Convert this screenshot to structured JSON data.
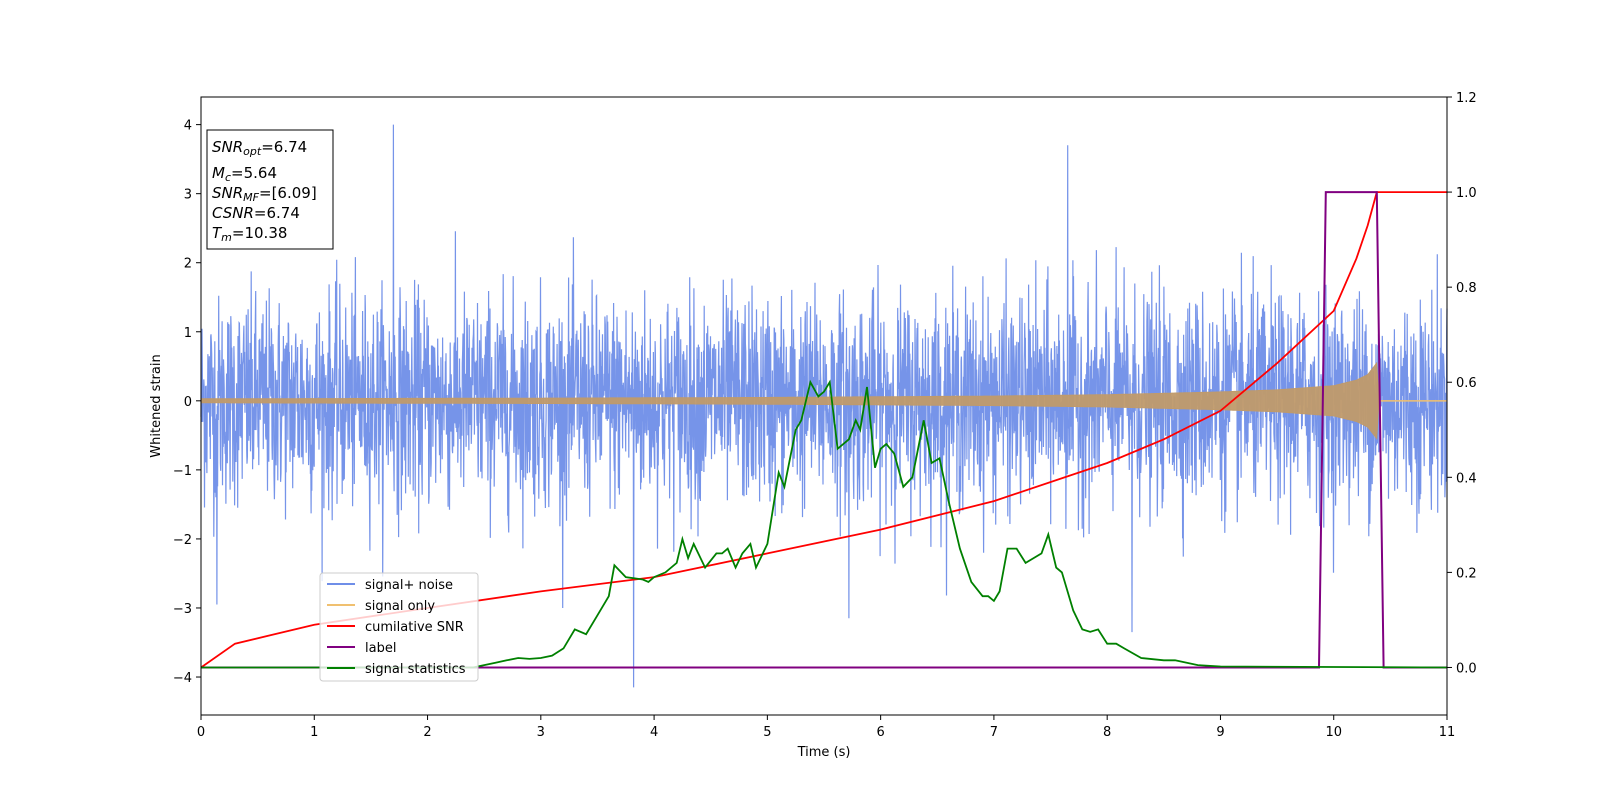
{
  "chart_data": {
    "type": "line",
    "xlabel": "Time (s)",
    "ylabel": "Whitened strain",
    "xlim": [
      0,
      11
    ],
    "ylim": [
      -4.55,
      4.4
    ],
    "y2lim": [
      -0.1,
      1.2
    ],
    "xticks": [
      0,
      1,
      2,
      3,
      4,
      5,
      6,
      7,
      8,
      9,
      10,
      11
    ],
    "xtick_labels": [
      "0",
      "1",
      "2",
      "3",
      "4",
      "5",
      "6",
      "7",
      "8",
      "9",
      "10",
      "11"
    ],
    "yticks": [
      -4,
      -3,
      -2,
      -1,
      0,
      1,
      2,
      3,
      4
    ],
    "ytick_labels": [
      "−4",
      "−3",
      "−2",
      "−1",
      "0",
      "1",
      "2",
      "3",
      "4"
    ],
    "y2ticks": [
      0.0,
      0.2,
      0.4,
      0.6,
      0.8,
      1.0,
      1.2
    ],
    "y2tick_labels": [
      "0.0",
      "0.2",
      "0.4",
      "0.6",
      "0.8",
      "1.0",
      "1.2"
    ],
    "grid": false,
    "legend_position": "lower-left",
    "info_box": {
      "snr_opt_sym": "SNR",
      "snr_opt_sub": "opt",
      "snr_opt_val": "=6.74",
      "mc_sym": "M",
      "mc_sub": "c",
      "mc_val": "=5.64",
      "snr_mf_sym": "SNR",
      "snr_mf_sub": "MF",
      "snr_mf_val": "=[6.09]",
      "csnr_sym": "CSNR",
      "csnr_val": "=6.74",
      "tm_sym": "T",
      "tm_sub": "m",
      "tm_val": "=10.38"
    },
    "series": [
      {
        "name": "signal+ noise",
        "color": "#6f8ee8",
        "axis": "left",
        "noise_sigma": 0.75,
        "peaks": [
          [
            1.7,
            4.0
          ],
          [
            7.65,
            3.7
          ],
          [
            3.82,
            -4.15
          ],
          [
            0.14,
            -2.95
          ],
          [
            5.72,
            -3.15
          ],
          [
            8.22,
            -3.35
          ]
        ]
      },
      {
        "name": "signal only",
        "color": "#f0c070",
        "axis": "left",
        "envelope": [
          [
            0,
            0.03
          ],
          [
            3,
            0.04
          ],
          [
            5,
            0.05
          ],
          [
            7,
            0.07
          ],
          [
            8,
            0.09
          ],
          [
            9,
            0.13
          ],
          [
            9.5,
            0.16
          ],
          [
            10,
            0.22
          ],
          [
            10.2,
            0.3
          ],
          [
            10.3,
            0.38
          ],
          [
            10.38,
            0.55
          ],
          [
            10.4,
            0.0
          ],
          [
            11,
            0.0
          ]
        ]
      },
      {
        "name": "cumilative SNR",
        "color": "#ff0000",
        "axis": "right",
        "end_time": 10.38,
        "values_note": "",
        "points": [
          [
            0.0,
            0.0
          ],
          [
            0.3,
            0.05
          ],
          [
            1.0,
            0.09
          ],
          [
            2.0,
            0.125
          ],
          [
            3.0,
            0.16
          ],
          [
            4.0,
            0.19
          ],
          [
            5.0,
            0.24
          ],
          [
            6.0,
            0.29
          ],
          [
            7.0,
            0.35
          ],
          [
            8.0,
            0.43
          ],
          [
            8.5,
            0.48
          ],
          [
            9.0,
            0.54
          ],
          [
            9.5,
            0.64
          ],
          [
            10.0,
            0.75
          ],
          [
            10.2,
            0.86
          ],
          [
            10.3,
            0.93
          ],
          [
            10.38,
            1.0
          ],
          [
            11.0,
            1.0
          ]
        ]
      },
      {
        "name": "label",
        "color": "#800080",
        "axis": "right",
        "points": [
          [
            0.0,
            0.0
          ],
          [
            9.87,
            0.0
          ],
          [
            9.93,
            1.0
          ],
          [
            10.38,
            1.0
          ],
          [
            10.44,
            0.0
          ],
          [
            11.0,
            0.0
          ]
        ]
      },
      {
        "name": "signal statistics",
        "color": "#008000",
        "axis": "right",
        "points": [
          [
            0.0,
            0.0
          ],
          [
            2.4,
            0.0
          ],
          [
            2.5,
            0.005
          ],
          [
            2.6,
            0.01
          ],
          [
            2.7,
            0.015
          ],
          [
            2.8,
            0.02
          ],
          [
            2.9,
            0.018
          ],
          [
            3.0,
            0.02
          ],
          [
            3.1,
            0.025
          ],
          [
            3.2,
            0.04
          ],
          [
            3.3,
            0.08
          ],
          [
            3.4,
            0.07
          ],
          [
            3.5,
            0.11
          ],
          [
            3.6,
            0.15
          ],
          [
            3.65,
            0.215
          ],
          [
            3.75,
            0.19
          ],
          [
            3.9,
            0.185
          ],
          [
            3.95,
            0.18
          ],
          [
            4.0,
            0.19
          ],
          [
            4.1,
            0.2
          ],
          [
            4.2,
            0.22
          ],
          [
            4.25,
            0.27
          ],
          [
            4.3,
            0.23
          ],
          [
            4.35,
            0.26
          ],
          [
            4.45,
            0.21
          ],
          [
            4.55,
            0.24
          ],
          [
            4.6,
            0.24
          ],
          [
            4.65,
            0.25
          ],
          [
            4.72,
            0.21
          ],
          [
            4.78,
            0.24
          ],
          [
            4.85,
            0.26
          ],
          [
            4.9,
            0.21
          ],
          [
            5.0,
            0.26
          ],
          [
            5.1,
            0.41
          ],
          [
            5.15,
            0.38
          ],
          [
            5.25,
            0.5
          ],
          [
            5.3,
            0.52
          ],
          [
            5.38,
            0.6
          ],
          [
            5.45,
            0.57
          ],
          [
            5.5,
            0.58
          ],
          [
            5.55,
            0.6
          ],
          [
            5.62,
            0.46
          ],
          [
            5.72,
            0.48
          ],
          [
            5.78,
            0.52
          ],
          [
            5.82,
            0.5
          ],
          [
            5.88,
            0.59
          ],
          [
            5.95,
            0.42
          ],
          [
            6.0,
            0.46
          ],
          [
            6.05,
            0.47
          ],
          [
            6.12,
            0.45
          ],
          [
            6.2,
            0.38
          ],
          [
            6.28,
            0.4
          ],
          [
            6.38,
            0.52
          ],
          [
            6.45,
            0.43
          ],
          [
            6.52,
            0.44
          ],
          [
            6.6,
            0.35
          ],
          [
            6.7,
            0.25
          ],
          [
            6.8,
            0.18
          ],
          [
            6.9,
            0.15
          ],
          [
            6.95,
            0.15
          ],
          [
            7.0,
            0.14
          ],
          [
            7.05,
            0.16
          ],
          [
            7.12,
            0.25
          ],
          [
            7.2,
            0.25
          ],
          [
            7.28,
            0.22
          ],
          [
            7.35,
            0.23
          ],
          [
            7.42,
            0.24
          ],
          [
            7.48,
            0.28
          ],
          [
            7.55,
            0.21
          ],
          [
            7.6,
            0.2
          ],
          [
            7.7,
            0.12
          ],
          [
            7.78,
            0.08
          ],
          [
            7.85,
            0.075
          ],
          [
            7.92,
            0.08
          ],
          [
            8.0,
            0.05
          ],
          [
            8.08,
            0.05
          ],
          [
            8.15,
            0.04
          ],
          [
            8.3,
            0.02
          ],
          [
            8.5,
            0.015
          ],
          [
            8.6,
            0.015
          ],
          [
            8.8,
            0.005
          ],
          [
            9.0,
            0.002
          ],
          [
            10.0,
            0.001
          ],
          [
            11.0,
            0.0
          ]
        ]
      }
    ]
  }
}
